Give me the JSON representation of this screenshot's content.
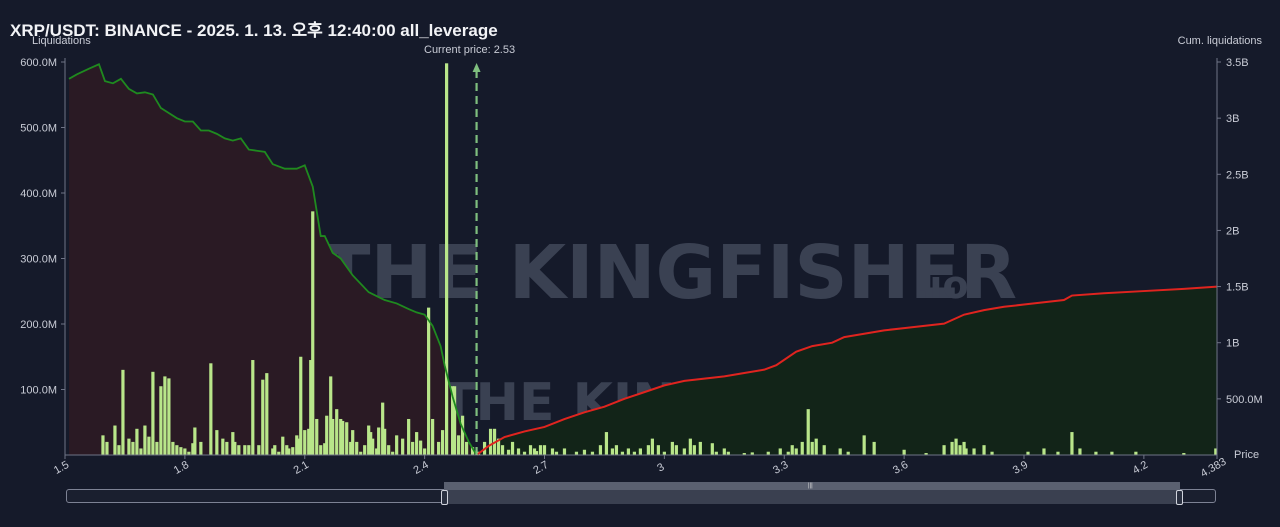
{
  "header": {
    "title": "XRP/USDT: BINANCE - 2025. 1. 13. 오후 12:40:00 all_leverage"
  },
  "axes": {
    "left_title": "Liquidations",
    "right_title": "Cum. liquidations",
    "x_title": "Price"
  },
  "current_price_label": "Current price: 2.53",
  "watermark": {
    "brand": "THE KINGFISHER",
    "suffix": ".io"
  },
  "colors": {
    "bars": "#b9e68a",
    "current_price": "#7fbf7f",
    "short_line": "#e0241f",
    "long_line": "#1f8a1f",
    "long_fill": "#2a1a24",
    "short_fill": "#122418"
  },
  "chart_data": {
    "type": "bar",
    "x_axis": {
      "min": 1.5,
      "max": 4.383,
      "ticks": [
        "1.5",
        "1.8",
        "2.1",
        "2.4",
        "2.7",
        "3",
        "3.3",
        "3.6",
        "3.9",
        "4.2",
        "4.383"
      ]
    },
    "left_axis": {
      "ylim": [
        0,
        600
      ],
      "unit": "M",
      "ticks": [
        "100.0M",
        "200.0M",
        "300.0M",
        "400.0M",
        "500.0M",
        "600.0M"
      ]
    },
    "right_axis": {
      "ylim": [
        0,
        3.5
      ],
      "unit": "B",
      "ticks": [
        "500.0M",
        "1B",
        "1.5B",
        "2B",
        "2.5B",
        "3B",
        "3.5B"
      ]
    },
    "current_price": 2.53,
    "series": [
      {
        "kind": "bars",
        "points": [
          [
            1.595,
            30
          ],
          [
            1.605,
            20
          ],
          [
            1.625,
            45
          ],
          [
            1.635,
            15
          ],
          [
            1.645,
            130
          ],
          [
            1.66,
            25
          ],
          [
            1.67,
            20
          ],
          [
            1.68,
            40
          ],
          [
            1.69,
            10
          ],
          [
            1.7,
            45
          ],
          [
            1.71,
            28
          ],
          [
            1.72,
            127
          ],
          [
            1.73,
            20
          ],
          [
            1.74,
            105
          ],
          [
            1.75,
            120
          ],
          [
            1.76,
            117
          ],
          [
            1.77,
            20
          ],
          [
            1.78,
            15
          ],
          [
            1.79,
            12
          ],
          [
            1.8,
            10
          ],
          [
            1.81,
            5
          ],
          [
            1.82,
            18
          ],
          [
            1.825,
            42
          ],
          [
            1.84,
            20
          ],
          [
            1.865,
            140
          ],
          [
            1.88,
            38
          ],
          [
            1.895,
            25
          ],
          [
            1.905,
            20
          ],
          [
            1.92,
            35
          ],
          [
            1.925,
            20
          ],
          [
            1.935,
            15
          ],
          [
            1.95,
            15
          ],
          [
            1.96,
            15
          ],
          [
            1.97,
            145
          ],
          [
            1.985,
            15
          ],
          [
            1.995,
            115
          ],
          [
            2.005,
            125
          ],
          [
            2.02,
            10
          ],
          [
            2.025,
            15
          ],
          [
            2.035,
            5
          ],
          [
            2.045,
            28
          ],
          [
            2.055,
            15
          ],
          [
            2.06,
            10
          ],
          [
            2.07,
            12
          ],
          [
            2.08,
            30
          ],
          [
            2.085,
            25
          ],
          [
            2.09,
            150
          ],
          [
            2.1,
            38
          ],
          [
            2.11,
            40
          ],
          [
            2.115,
            145
          ],
          [
            2.12,
            372
          ],
          [
            2.13,
            55
          ],
          [
            2.14,
            15
          ],
          [
            2.15,
            18
          ],
          [
            2.155,
            60
          ],
          [
            2.165,
            120
          ],
          [
            2.17,
            55
          ],
          [
            2.18,
            70
          ],
          [
            2.19,
            55
          ],
          [
            2.195,
            52
          ],
          [
            2.205,
            50
          ],
          [
            2.215,
            20
          ],
          [
            2.22,
            38
          ],
          [
            2.23,
            20
          ],
          [
            2.24,
            5
          ],
          [
            2.25,
            15
          ],
          [
            2.26,
            45
          ],
          [
            2.265,
            35
          ],
          [
            2.27,
            25
          ],
          [
            2.28,
            10
          ],
          [
            2.285,
            42
          ],
          [
            2.295,
            80
          ],
          [
            2.3,
            40
          ],
          [
            2.31,
            15
          ],
          [
            2.32,
            5
          ],
          [
            2.33,
            30
          ],
          [
            2.345,
            25
          ],
          [
            2.36,
            55
          ],
          [
            2.37,
            20
          ],
          [
            2.38,
            35
          ],
          [
            2.39,
            22
          ],
          [
            2.4,
            10
          ],
          [
            2.41,
            225
          ],
          [
            2.42,
            55
          ],
          [
            2.435,
            20
          ],
          [
            2.445,
            38
          ],
          [
            2.455,
            598
          ],
          [
            2.47,
            105
          ],
          [
            2.475,
            105
          ],
          [
            2.485,
            30
          ],
          [
            2.495,
            60
          ],
          [
            2.505,
            20
          ],
          [
            2.52,
            12
          ],
          [
            2.535,
            5
          ],
          [
            2.55,
            20
          ],
          [
            2.565,
            40
          ],
          [
            2.575,
            40
          ],
          [
            2.585,
            25
          ],
          [
            2.595,
            15
          ],
          [
            2.61,
            8
          ],
          [
            2.62,
            20
          ],
          [
            2.635,
            10
          ],
          [
            2.65,
            5
          ],
          [
            2.665,
            15
          ],
          [
            2.675,
            10
          ],
          [
            2.68,
            6
          ],
          [
            2.69,
            15
          ],
          [
            2.7,
            15
          ],
          [
            2.72,
            10
          ],
          [
            2.73,
            5
          ],
          [
            2.75,
            10
          ],
          [
            2.78,
            5
          ],
          [
            2.8,
            8
          ],
          [
            2.82,
            5
          ],
          [
            2.84,
            15
          ],
          [
            2.855,
            35
          ],
          [
            2.87,
            10
          ],
          [
            2.88,
            15
          ],
          [
            2.895,
            5
          ],
          [
            2.91,
            10
          ],
          [
            2.925,
            5
          ],
          [
            2.94,
            10
          ],
          [
            2.96,
            15
          ],
          [
            2.97,
            25
          ],
          [
            2.985,
            15
          ],
          [
            3,
            5
          ],
          [
            3.02,
            20
          ],
          [
            3.03,
            15
          ],
          [
            3.05,
            10
          ],
          [
            3.065,
            25
          ],
          [
            3.075,
            15
          ],
          [
            3.09,
            20
          ],
          [
            3.12,
            18
          ],
          [
            3.13,
            5
          ],
          [
            3.15,
            10
          ],
          [
            3.16,
            5
          ],
          [
            3.2,
            3
          ],
          [
            3.22,
            4
          ],
          [
            3.26,
            5
          ],
          [
            3.29,
            10
          ],
          [
            3.31,
            5
          ],
          [
            3.32,
            15
          ],
          [
            3.33,
            10
          ],
          [
            3.345,
            20
          ],
          [
            3.36,
            70
          ],
          [
            3.37,
            20
          ],
          [
            3.38,
            25
          ],
          [
            3.4,
            15
          ],
          [
            3.44,
            10
          ],
          [
            3.46,
            5
          ],
          [
            3.5,
            30
          ],
          [
            3.525,
            20
          ],
          [
            3.6,
            8
          ],
          [
            3.655,
            3
          ],
          [
            3.7,
            15
          ],
          [
            3.72,
            20
          ],
          [
            3.73,
            25
          ],
          [
            3.74,
            15
          ],
          [
            3.75,
            20
          ],
          [
            3.755,
            10
          ],
          [
            3.775,
            10
          ],
          [
            3.8,
            15
          ],
          [
            3.82,
            5
          ],
          [
            3.91,
            5
          ],
          [
            3.95,
            10
          ],
          [
            3.985,
            5
          ],
          [
            4.02,
            35
          ],
          [
            4.04,
            10
          ],
          [
            4.08,
            5
          ],
          [
            4.12,
            5
          ],
          [
            4.18,
            5
          ],
          [
            4.3,
            3
          ],
          [
            4.38,
            10
          ]
        ]
      },
      {
        "kind": "long_cumulative",
        "points": [
          [
            1.51,
            3.35
          ],
          [
            1.53,
            3.39
          ],
          [
            1.56,
            3.44
          ],
          [
            1.585,
            3.48
          ],
          [
            1.6,
            3.33
          ],
          [
            1.62,
            3.31
          ],
          [
            1.64,
            3.35
          ],
          [
            1.66,
            3.26
          ],
          [
            1.68,
            3.22
          ],
          [
            1.7,
            3.23
          ],
          [
            1.72,
            3.21
          ],
          [
            1.74,
            3.09
          ],
          [
            1.78,
            3.0
          ],
          [
            1.8,
            2.97
          ],
          [
            1.82,
            2.97
          ],
          [
            1.84,
            2.89
          ],
          [
            1.86,
            2.89
          ],
          [
            1.88,
            2.86
          ],
          [
            1.9,
            2.82
          ],
          [
            1.92,
            2.8
          ],
          [
            1.94,
            2.82
          ],
          [
            1.96,
            2.72
          ],
          [
            1.98,
            2.71
          ],
          [
            2.0,
            2.7
          ],
          [
            2.02,
            2.59
          ],
          [
            2.05,
            2.55
          ],
          [
            2.08,
            2.55
          ],
          [
            2.1,
            2.58
          ],
          [
            2.12,
            2.39
          ],
          [
            2.14,
            1.95
          ],
          [
            2.15,
            1.95
          ],
          [
            2.17,
            1.8
          ],
          [
            2.19,
            1.75
          ],
          [
            2.22,
            1.6
          ],
          [
            2.26,
            1.45
          ],
          [
            2.3,
            1.38
          ],
          [
            2.33,
            1.35
          ],
          [
            2.36,
            1.3
          ],
          [
            2.38,
            1.27
          ],
          [
            2.4,
            1.25
          ],
          [
            2.42,
            1.15
          ],
          [
            2.44,
            0.97
          ],
          [
            2.45,
            0.8
          ],
          [
            2.47,
            0.52
          ],
          [
            2.49,
            0.28
          ],
          [
            2.51,
            0.12
          ],
          [
            2.52,
            0.06
          ],
          [
            2.53,
            0.0
          ]
        ]
      },
      {
        "kind": "short_cumulative",
        "points": [
          [
            2.53,
            0.0
          ],
          [
            2.56,
            0.08
          ],
          [
            2.6,
            0.16
          ],
          [
            2.65,
            0.21
          ],
          [
            2.7,
            0.25
          ],
          [
            2.75,
            0.32
          ],
          [
            2.8,
            0.38
          ],
          [
            2.85,
            0.43
          ],
          [
            2.9,
            0.5
          ],
          [
            2.95,
            0.56
          ],
          [
            3.0,
            0.62
          ],
          [
            3.05,
            0.66
          ],
          [
            3.1,
            0.68
          ],
          [
            3.15,
            0.7
          ],
          [
            3.2,
            0.73
          ],
          [
            3.25,
            0.76
          ],
          [
            3.28,
            0.8
          ],
          [
            3.33,
            0.92
          ],
          [
            3.37,
            0.97
          ],
          [
            3.42,
            1.0
          ],
          [
            3.45,
            1.05
          ],
          [
            3.5,
            1.08
          ],
          [
            3.55,
            1.11
          ],
          [
            3.6,
            1.13
          ],
          [
            3.65,
            1.15
          ],
          [
            3.7,
            1.17
          ],
          [
            3.75,
            1.25
          ],
          [
            3.8,
            1.29
          ],
          [
            3.85,
            1.32
          ],
          [
            3.9,
            1.34
          ],
          [
            3.95,
            1.36
          ],
          [
            4.0,
            1.38
          ],
          [
            4.02,
            1.42
          ],
          [
            4.1,
            1.44
          ],
          [
            4.2,
            1.46
          ],
          [
            4.3,
            1.48
          ],
          [
            4.383,
            1.5
          ]
        ]
      }
    ]
  }
}
